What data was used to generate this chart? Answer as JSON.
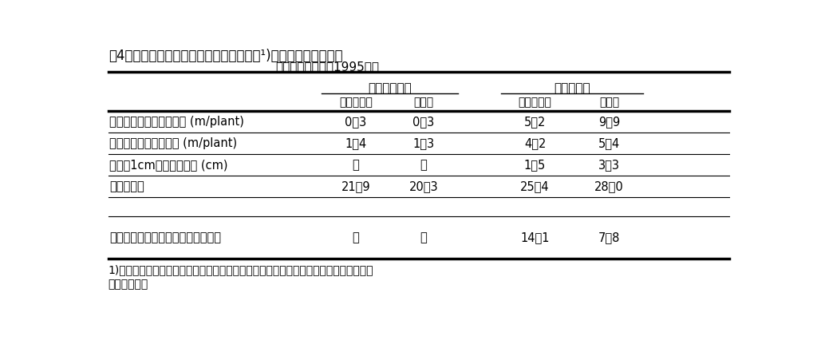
{
  "title1": "表4　耕起法が大豆の根系発達と・不定根¹)の角度に及ぼす影響",
  "title2": "（バスケット法：1995年）",
  "group_headers": [
    "初生葉展開期",
    "５葉展開期"
  ],
  "col_headers": [
    "ロータリ耕",
    "不耕起",
    "ロータリ耕",
    "不耕起"
  ],
  "row_labels": [
    "不定根とその側根の長さ (m/plant)",
    "主根とその側根の長さ (m/plant)",
    "不定根1cmあたり側根長 (cm)",
    "不定根の数",
    "不定根の平均伸長角度（対水平軸）"
  ],
  "data": [
    [
      "0．3",
      "0．3",
      "5．2",
      "9．9"
    ],
    [
      "1．4",
      "1．3",
      "4．2",
      "5．4"
    ],
    [
      "－",
      "－",
      "1．5",
      "3．3"
    ],
    [
      "21．9",
      "20．3",
      "25．4",
      "28．0"
    ],
    [
      "－",
      "－",
      "14．1",
      "7．8"
    ]
  ],
  "footnote1": "1)子葉とそこから下方に伸長した胚軸が細くなる間を下胚軸とし、ここから出る根を不",
  "footnote2": "定根とした。",
  "bg_color": "#ffffff"
}
